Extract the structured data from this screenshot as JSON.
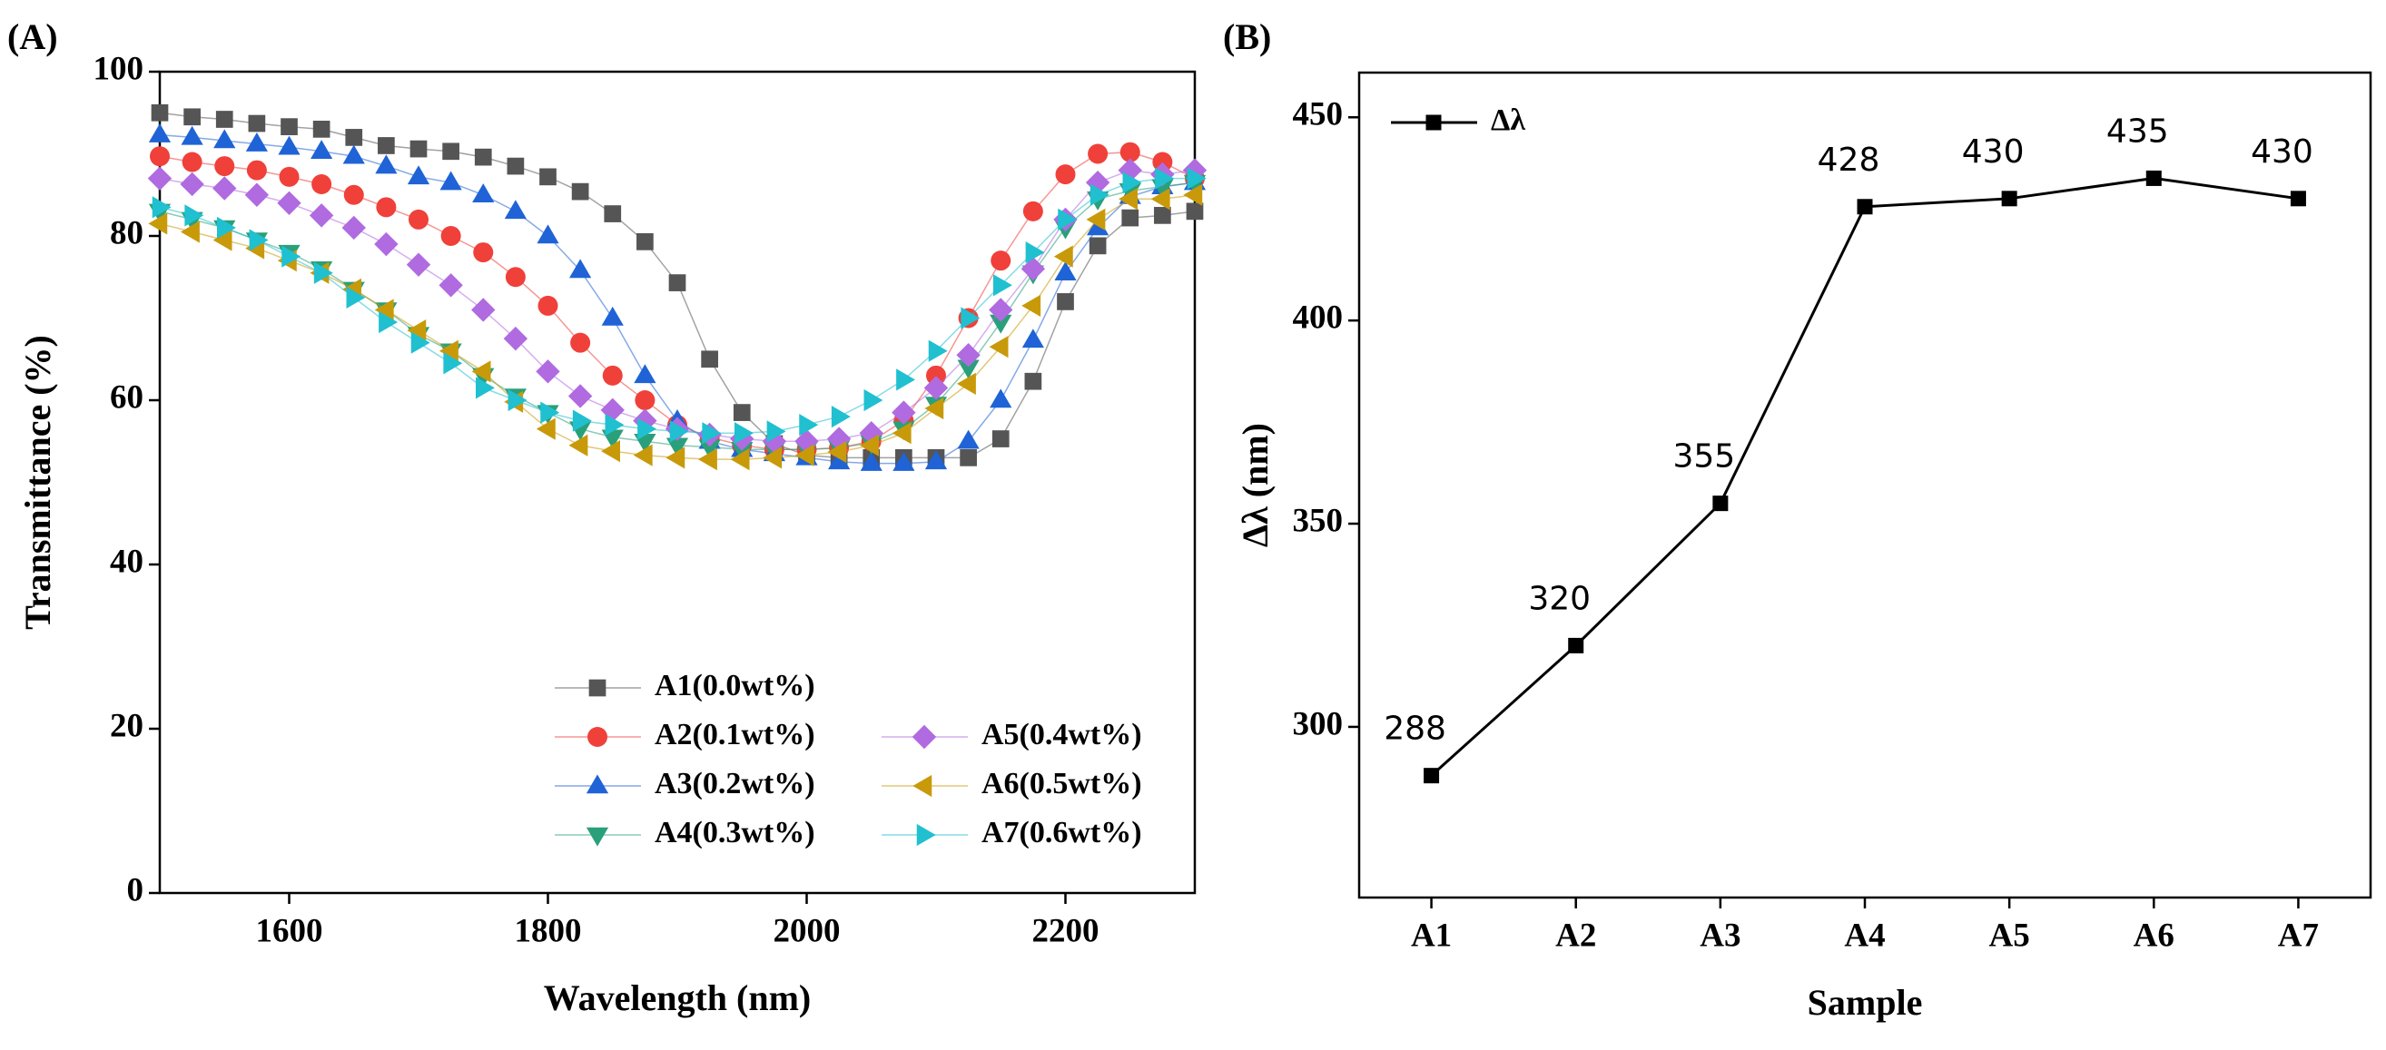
{
  "chart_data": [
    {
      "type": "line",
      "panel_label": "(A)",
      "x_label": "Wavelength (nm)",
      "y_label": "Transmittance (%)",
      "xlim": [
        1500,
        2300
      ],
      "xticks": [
        1600,
        1800,
        2000,
        2200
      ],
      "ylim": [
        0,
        100
      ],
      "yticks": [
        0,
        20,
        40,
        60,
        80,
        100
      ],
      "legend": "lower center",
      "x": [
        1500,
        1525,
        1550,
        1575,
        1600,
        1625,
        1650,
        1675,
        1700,
        1725,
        1750,
        1775,
        1800,
        1825,
        1850,
        1875,
        1900,
        1925,
        1950,
        1975,
        2000,
        2025,
        2050,
        2075,
        2100,
        2125,
        2150,
        2175,
        2200,
        2225,
        2250,
        2275,
        2300
      ],
      "series": [
        {
          "name": "A1(0.0wt%)",
          "color": "#555555",
          "marker": "square",
          "values": [
            95,
            94.5,
            94.2,
            93.7,
            93.3,
            93,
            92,
            91,
            90.6,
            90.3,
            89.6,
            88.5,
            87.2,
            85.4,
            82.7,
            79.3,
            74.3,
            65,
            58.5,
            54.7,
            53.3,
            53,
            53,
            53,
            53,
            53,
            55.3,
            62.3,
            72,
            78.8,
            82.2,
            82.5,
            83
          ]
        },
        {
          "name": "A2(0.1wt%)",
          "color": "#f0403a",
          "marker": "circle",
          "values": [
            89.7,
            89,
            88.5,
            88,
            87.2,
            86.3,
            85,
            83.5,
            82,
            80,
            78,
            75,
            71.5,
            67,
            63,
            60,
            57,
            55.5,
            54.5,
            54,
            54,
            54.2,
            55,
            57.5,
            63,
            70,
            77,
            83,
            87.5,
            90,
            90.2,
            89,
            87
          ]
        },
        {
          "name": "A3(0.2wt%)",
          "color": "#1f63d6",
          "marker": "triangle-up",
          "values": [
            92.3,
            92,
            91.6,
            91.2,
            90.8,
            90.3,
            89.7,
            88.5,
            87.2,
            86.5,
            85,
            83,
            80,
            75.8,
            70,
            63,
            57.5,
            55,
            54,
            53.5,
            53,
            52.5,
            52.3,
            52.3,
            52.5,
            55,
            60,
            67.3,
            75.5,
            81,
            84.8,
            86,
            86.5
          ]
        },
        {
          "name": "A4(0.3wt%)",
          "color": "#2aa07a",
          "marker": "triangle-down",
          "values": [
            83,
            82,
            81,
            79.5,
            78,
            76,
            73.5,
            71,
            68,
            66,
            63,
            60.5,
            58.5,
            56.5,
            55.5,
            55,
            54.5,
            54.3,
            54,
            54,
            54,
            54.2,
            54.8,
            56.5,
            59.5,
            64,
            69.5,
            75.5,
            81,
            84.5,
            85.5,
            86,
            86.5
          ]
        },
        {
          "name": "A5(0.4wt%)",
          "color": "#b06be0",
          "marker": "diamond",
          "values": [
            87,
            86.3,
            85.8,
            85,
            84,
            82.5,
            81,
            79,
            76.5,
            74,
            71,
            67.5,
            63.5,
            60.5,
            58.8,
            57.5,
            56.5,
            55.8,
            55.3,
            55,
            55,
            55.3,
            56,
            58.5,
            61.5,
            65.5,
            71,
            76,
            82,
            86.5,
            88,
            87.5,
            88
          ]
        },
        {
          "name": "A6(0.5wt%)",
          "color": "#c89a0a",
          "marker": "triangle-left",
          "values": [
            81.5,
            80.5,
            79.5,
            78.5,
            77,
            75.5,
            73.5,
            71,
            68.5,
            66,
            63.5,
            59.8,
            56.5,
            54.5,
            53.8,
            53.3,
            53,
            52.8,
            52.8,
            53,
            53.3,
            53.7,
            54.5,
            56,
            59,
            62,
            66.5,
            71.5,
            77.5,
            82,
            84.5,
            84.5,
            85
          ]
        },
        {
          "name": "A7(0.6wt%)",
          "color": "#20c0d0",
          "marker": "triangle-right",
          "values": [
            83.5,
            82.5,
            81,
            79.5,
            77.5,
            75.5,
            72.5,
            69.5,
            67,
            64.5,
            61.5,
            60,
            58.5,
            57.5,
            57,
            56.5,
            56.2,
            56,
            56,
            56.2,
            57,
            58,
            60,
            62.5,
            66,
            70,
            74,
            78,
            82,
            85,
            86.5,
            87,
            87
          ]
        }
      ]
    },
    {
      "type": "line",
      "panel_label": "(B)",
      "x_label": "Sample",
      "y_label": "Δλ (nm)",
      "categories": [
        "A1",
        "A2",
        "A3",
        "A4",
        "A5",
        "A6",
        "A7"
      ],
      "ylim": [
        258,
        461
      ],
      "yticks": [
        300,
        350,
        400,
        450
      ],
      "legend": "upper left",
      "data_labels": true,
      "series": [
        {
          "name": "Δλ",
          "color": "#000000",
          "marker": "square",
          "values": [
            288,
            320,
            355,
            428,
            430,
            435,
            430
          ]
        }
      ]
    }
  ]
}
